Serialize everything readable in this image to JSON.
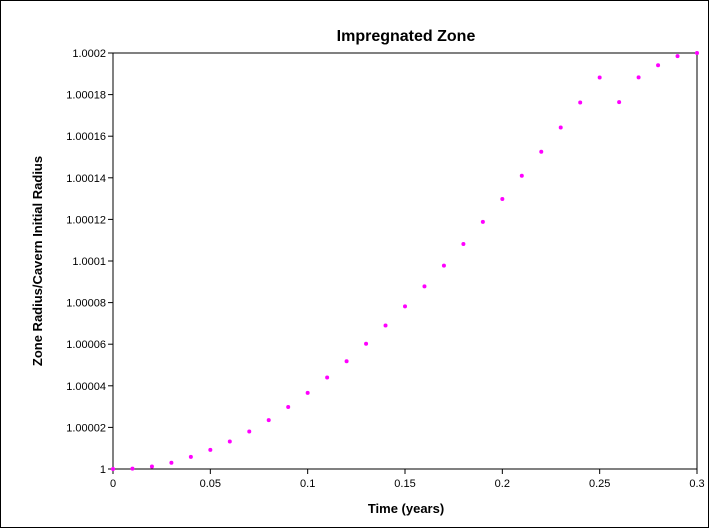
{
  "chart_data": {
    "type": "scatter",
    "title": "Impregnated Zone",
    "xlabel": "Time (years)",
    "ylabel": "Zone Radius/Cavern Initial Radius",
    "xlim": [
      0,
      0.3
    ],
    "ylim": [
      1,
      1.0002
    ],
    "x_ticks": [
      "0",
      "0.05",
      "0.1",
      "0.15",
      "0.2",
      "0.25",
      "0.3"
    ],
    "y_ticks": [
      "1",
      "1.00002",
      "1.00004",
      "1.00006",
      "1.00008",
      "1.0001",
      "1.00012",
      "1.00014",
      "1.00016",
      "1.00018",
      "1.0002"
    ],
    "grid": false,
    "legend": "none",
    "series": [
      {
        "color": "#ff00ff",
        "marker": "dot",
        "x": [
          0,
          0.01,
          0.02,
          0.03,
          0.04,
          0.05,
          0.06,
          0.07,
          0.08,
          0.09,
          0.1,
          0.11,
          0.12,
          0.13,
          0.14,
          0.15,
          0.16,
          0.17,
          0.18,
          0.19,
          0.2,
          0.21,
          0.22,
          0.23,
          0.24,
          0.25,
          0.26,
          0.27,
          0.28,
          0.29,
          0.3
        ],
        "y": [
          1.0,
          1.0000002,
          1.0000012,
          1.000003,
          1.0000058,
          1.0000092,
          1.0000132,
          1.000018,
          1.0000235,
          1.0000298,
          1.0000366,
          1.000044,
          1.0000518,
          1.0000602,
          1.000069,
          1.0000782,
          1.0000878,
          1.0000978,
          1.0001082,
          1.0001188,
          1.0001298,
          1.000141,
          1.0001525,
          1.0001642,
          1.0001762,
          1.0001882,
          1.0001764,
          1.0001883,
          1.0001941,
          1.0001985,
          1.0002
        ]
      }
    ]
  }
}
